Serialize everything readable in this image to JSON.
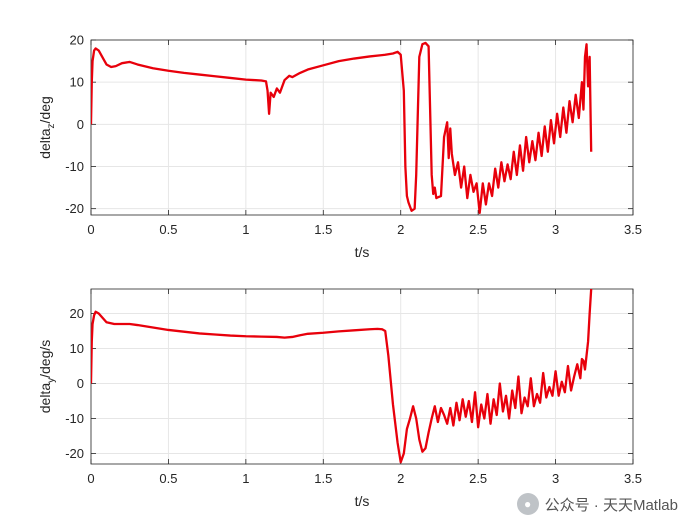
{
  "chart_data": [
    {
      "type": "line",
      "xlabel": "t/s",
      "ylabel_main": "delta",
      "ylabel_sub": "z",
      "ylabel_tail": "/deg",
      "xlim": [
        0,
        3.5
      ],
      "ylim": [
        -21.5,
        20
      ],
      "xticks": [
        0,
        0.5,
        1,
        1.5,
        2,
        2.5,
        3,
        3.5
      ],
      "xtick_labels": [
        "0",
        "0.5",
        "1",
        "1.5",
        "2",
        "2.5",
        "3",
        "3.5"
      ],
      "yticks": [
        -20,
        -10,
        0,
        10,
        20
      ],
      "ytick_labels": [
        "-20",
        "-10",
        "0",
        "10",
        "20"
      ],
      "grid": true,
      "series": [
        {
          "color": "#e8000b",
          "x": [
            0,
            0.005,
            0.01,
            0.02,
            0.03,
            0.05,
            0.08,
            0.1,
            0.13,
            0.16,
            0.2,
            0.25,
            0.3,
            0.4,
            0.5,
            0.6,
            0.7,
            0.8,
            0.9,
            1.0,
            1.05,
            1.1,
            1.13,
            1.14,
            1.15,
            1.16,
            1.18,
            1.2,
            1.22,
            1.25,
            1.28,
            1.3,
            1.35,
            1.4,
            1.5,
            1.6,
            1.7,
            1.8,
            1.9,
            1.95,
            1.98,
            2.0,
            2.02,
            2.03,
            2.04,
            2.05,
            2.07,
            2.09,
            2.1,
            2.12,
            2.14,
            2.16,
            2.18,
            2.2,
            2.21,
            2.22,
            2.23,
            2.24,
            2.26,
            2.28,
            2.3,
            2.31,
            2.32,
            2.33,
            2.35,
            2.37,
            2.39,
            2.41,
            2.43,
            2.45,
            2.47,
            2.49,
            2.51,
            2.53,
            2.55,
            2.57,
            2.59,
            2.61,
            2.63,
            2.65,
            2.67,
            2.69,
            2.71,
            2.73,
            2.75,
            2.77,
            2.79,
            2.81,
            2.83,
            2.85,
            2.87,
            2.89,
            2.91,
            2.93,
            2.95,
            2.97,
            2.99,
            3.01,
            3.03,
            3.05,
            3.07,
            3.09,
            3.11,
            3.13,
            3.15,
            3.17,
            3.18,
            3.19,
            3.2,
            3.21,
            3.22,
            3.23
          ],
          "y": [
            0,
            10,
            15,
            17.5,
            18,
            17.5,
            15.5,
            14.2,
            13.6,
            13.8,
            14.5,
            14.8,
            14.2,
            13.3,
            12.7,
            12.2,
            11.8,
            11.4,
            11.0,
            10.6,
            10.5,
            10.4,
            10.2,
            8.0,
            2.5,
            7.5,
            6.5,
            8.5,
            7.5,
            10.5,
            11.5,
            11.2,
            12.2,
            13.0,
            14.0,
            15.0,
            15.6,
            16.1,
            16.5,
            16.8,
            17.2,
            16.5,
            8.0,
            -10.0,
            -17.0,
            -18.5,
            -20.5,
            -20.0,
            -12.0,
            16.0,
            19.0,
            19.3,
            18.5,
            -12.0,
            -16.5,
            -15.0,
            -17.5,
            -17.3,
            -17.0,
            -3.0,
            0.5,
            -8.0,
            -1.0,
            -7.0,
            -12.0,
            -9.0,
            -15.0,
            -10.0,
            -17.5,
            -12.0,
            -16.0,
            -14.0,
            -21.0,
            -14.0,
            -19.0,
            -14.0,
            -17.0,
            -10.5,
            -15.0,
            -9.0,
            -13.5,
            -9.5,
            -13.0,
            -6.5,
            -12.0,
            -5.0,
            -11.0,
            -3.0,
            -9.0,
            -4.0,
            -8.5,
            -2.0,
            -7.5,
            -0.5,
            -6.5,
            1.0,
            -4.5,
            2.5,
            -3.0,
            4.0,
            -2.0,
            5.5,
            0.5,
            7.0,
            1.5,
            10.0,
            3.5,
            16.0,
            19.0,
            9.0,
            16.0,
            -6.5
          ]
        }
      ]
    },
    {
      "type": "line",
      "xlabel": "t/s",
      "ylabel_main": "delta",
      "ylabel_sub": "y",
      "ylabel_tail": "/deg/s",
      "xlim": [
        0,
        3.5
      ],
      "ylim": [
        -23,
        27
      ],
      "xticks": [
        0,
        0.5,
        1,
        1.5,
        2,
        2.5,
        3,
        3.5
      ],
      "xtick_labels": [
        "0",
        "0.5",
        "1",
        "1.5",
        "2",
        "2.5",
        "3",
        "3.5"
      ],
      "yticks": [
        -20,
        -10,
        0,
        10,
        20
      ],
      "ytick_labels": [
        "-20",
        "-10",
        "0",
        "10",
        "20"
      ],
      "grid": true,
      "series": [
        {
          "color": "#e8000b",
          "x": [
            0,
            0.005,
            0.01,
            0.02,
            0.03,
            0.05,
            0.08,
            0.1,
            0.15,
            0.2,
            0.25,
            0.3,
            0.4,
            0.5,
            0.6,
            0.7,
            0.8,
            0.9,
            1.0,
            1.1,
            1.2,
            1.25,
            1.3,
            1.35,
            1.4,
            1.5,
            1.6,
            1.7,
            1.8,
            1.85,
            1.88,
            1.9,
            1.92,
            1.95,
            1.98,
            2.0,
            2.02,
            2.04,
            2.06,
            2.08,
            2.1,
            2.12,
            2.14,
            2.16,
            2.18,
            2.2,
            2.22,
            2.24,
            2.26,
            2.28,
            2.3,
            2.32,
            2.34,
            2.36,
            2.38,
            2.4,
            2.42,
            2.44,
            2.46,
            2.48,
            2.5,
            2.52,
            2.54,
            2.56,
            2.58,
            2.6,
            2.62,
            2.64,
            2.66,
            2.68,
            2.7,
            2.72,
            2.74,
            2.76,
            2.78,
            2.8,
            2.82,
            2.84,
            2.86,
            2.88,
            2.9,
            2.92,
            2.94,
            2.96,
            2.98,
            3.0,
            3.02,
            3.04,
            3.06,
            3.08,
            3.1,
            3.12,
            3.14,
            3.16,
            3.17,
            3.18,
            3.19,
            3.2,
            3.21,
            3.22,
            3.23
          ],
          "y": [
            0,
            12,
            17,
            19.5,
            20.5,
            20.0,
            18.5,
            17.5,
            17.0,
            17.0,
            17.0,
            16.7,
            16.0,
            15.3,
            14.8,
            14.3,
            14.0,
            13.7,
            13.5,
            13.4,
            13.3,
            13.1,
            13.3,
            13.8,
            14.2,
            14.5,
            14.9,
            15.2,
            15.5,
            15.6,
            15.5,
            15.0,
            8.0,
            -6.0,
            -17.0,
            -22.5,
            -20.0,
            -13.0,
            -10.0,
            -6.5,
            -10.0,
            -16.0,
            -19.5,
            -18.5,
            -14.0,
            -10.0,
            -6.5,
            -11.0,
            -7.0,
            -9.0,
            -11.5,
            -7.0,
            -12.0,
            -5.5,
            -10.5,
            -4.5,
            -9.5,
            -5.0,
            -11.0,
            -2.5,
            -12.5,
            -6.0,
            -10.0,
            -3.0,
            -11.5,
            -4.5,
            -9.0,
            0.0,
            -8.0,
            -3.5,
            -10.0,
            -2.0,
            -7.0,
            2.0,
            -8.5,
            -4.0,
            -6.5,
            1.5,
            -6.5,
            -3.0,
            -5.5,
            3.0,
            -4.0,
            -1.0,
            -3.5,
            3.5,
            -3.5,
            0.5,
            -2.5,
            5.0,
            -2.0,
            2.0,
            5.5,
            1.5,
            7.0,
            6.5,
            4.0,
            8.0,
            12.0,
            20.0,
            27.0
          ]
        }
      ]
    }
  ],
  "watermark": {
    "text": "公众号 · 天天Matlab",
    "icon": "wechat-icon"
  }
}
